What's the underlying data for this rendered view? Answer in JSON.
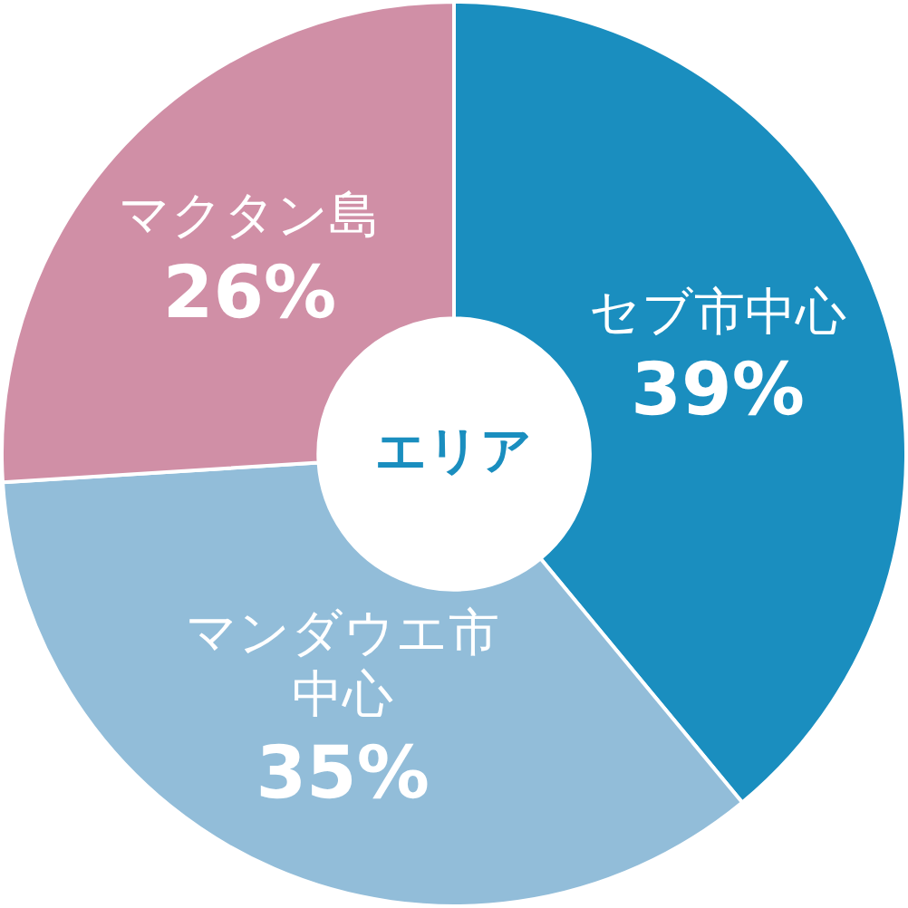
{
  "chart_data": {
    "type": "donut",
    "title": "エリア",
    "categories": [
      "セブ市中心",
      "マンダウエ市中心",
      "マクタン島"
    ],
    "values": [
      39,
      35,
      26
    ],
    "value_labels": [
      "39%",
      "35%",
      "26%"
    ],
    "colors": [
      "#1a8ebf",
      "#92bdd9",
      "#d08fa6"
    ]
  }
}
